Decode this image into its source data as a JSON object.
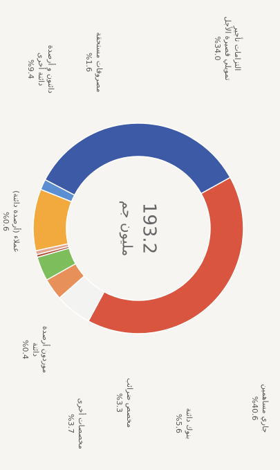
{
  "chart_data": {
    "type": "donut",
    "center_value": "193.2",
    "center_unit": "مليون جم",
    "categories": [
      [
        "جاري مساهمين"
      ],
      [
        "بنوك دائنة"
      ],
      [
        "مخصص ضرائب"
      ],
      [
        "مخصصات أخرى"
      ],
      [
        "موردون أرصدة",
        "دائنة"
      ],
      [
        "عملاء (أرصدة دائنة)"
      ],
      [
        "دائنون و أرصدة",
        "دائنة أخرى"
      ],
      [
        "مصروفات مستحقة"
      ],
      [
        "التزامات تأجير",
        "تمويلي قصيرة الأجل"
      ]
    ],
    "values": [
      40.6,
      5.6,
      3.3,
      3.7,
      0.4,
      0.6,
      9.4,
      1.6,
      34.0
    ],
    "value_labels": [
      "%40.6",
      "%5.6",
      "%3.3",
      "%3.7",
      "%0.4",
      "%0.6",
      "%9.4",
      "%1.6",
      "%34.0"
    ],
    "colors": [
      "#d9553f",
      "#f3f3f1",
      "#e8905a",
      "#7dbd5c",
      "#b0503a",
      "#e3a58e",
      "#f2aa3e",
      "#5b8fd2",
      "#3d5aa6"
    ]
  }
}
